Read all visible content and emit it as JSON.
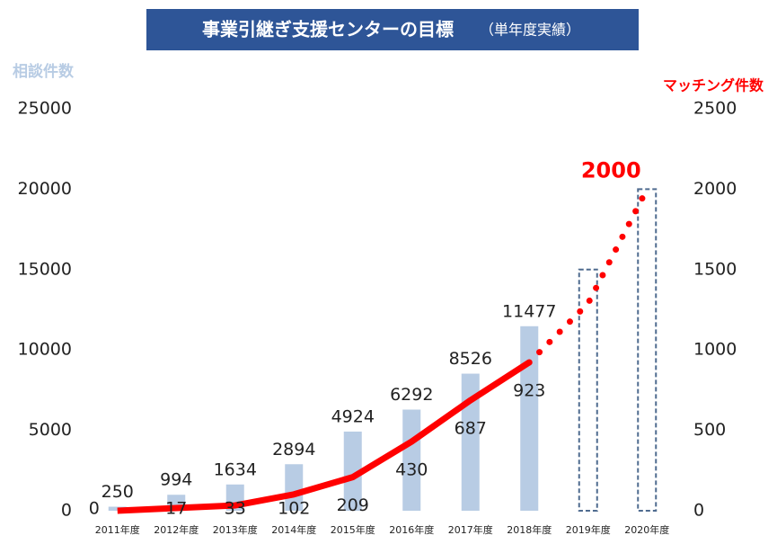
{
  "chart_data": {
    "type": "bar-line",
    "title": "事業引継ぎ支援センターの目標",
    "subtitle": "（単年度実績）",
    "y_axis_label": "相談件数",
    "y2_axis_label": "マッチング件数",
    "categories": [
      "2011年度",
      "2012年度",
      "2013年度",
      "2014年度",
      "2015年度",
      "2016年度",
      "2017年度",
      "2018年度",
      "2019年度",
      "2020年度"
    ],
    "bars": {
      "color": "#b8cce4",
      "values": [
        250,
        994,
        1634,
        2894,
        4924,
        6292,
        8526,
        11477,
        null,
        null
      ]
    },
    "line": {
      "color": "#ff0000",
      "axis": "y2",
      "values": [
        0,
        17,
        33,
        102,
        209,
        430,
        687,
        923,
        null,
        null
      ]
    },
    "projection": {
      "color": "#ff0000",
      "axis": "y2",
      "values": [
        null,
        null,
        null,
        null,
        null,
        null,
        null,
        923,
        1290,
        2000
      ]
    },
    "targets": {
      "color": "#4f6b8f",
      "axis": "y2",
      "values": [
        null,
        null,
        null,
        null,
        null,
        null,
        null,
        null,
        1500,
        2000
      ]
    },
    "annotation": {
      "text": "2000",
      "value": 2000
    },
    "ylim": [
      0,
      25000
    ],
    "yticks": [
      0,
      5000,
      10000,
      15000,
      20000,
      25000
    ],
    "y2lim": [
      0,
      2500
    ],
    "y2ticks": [
      0,
      500,
      1000,
      1500,
      2000,
      2500
    ]
  }
}
